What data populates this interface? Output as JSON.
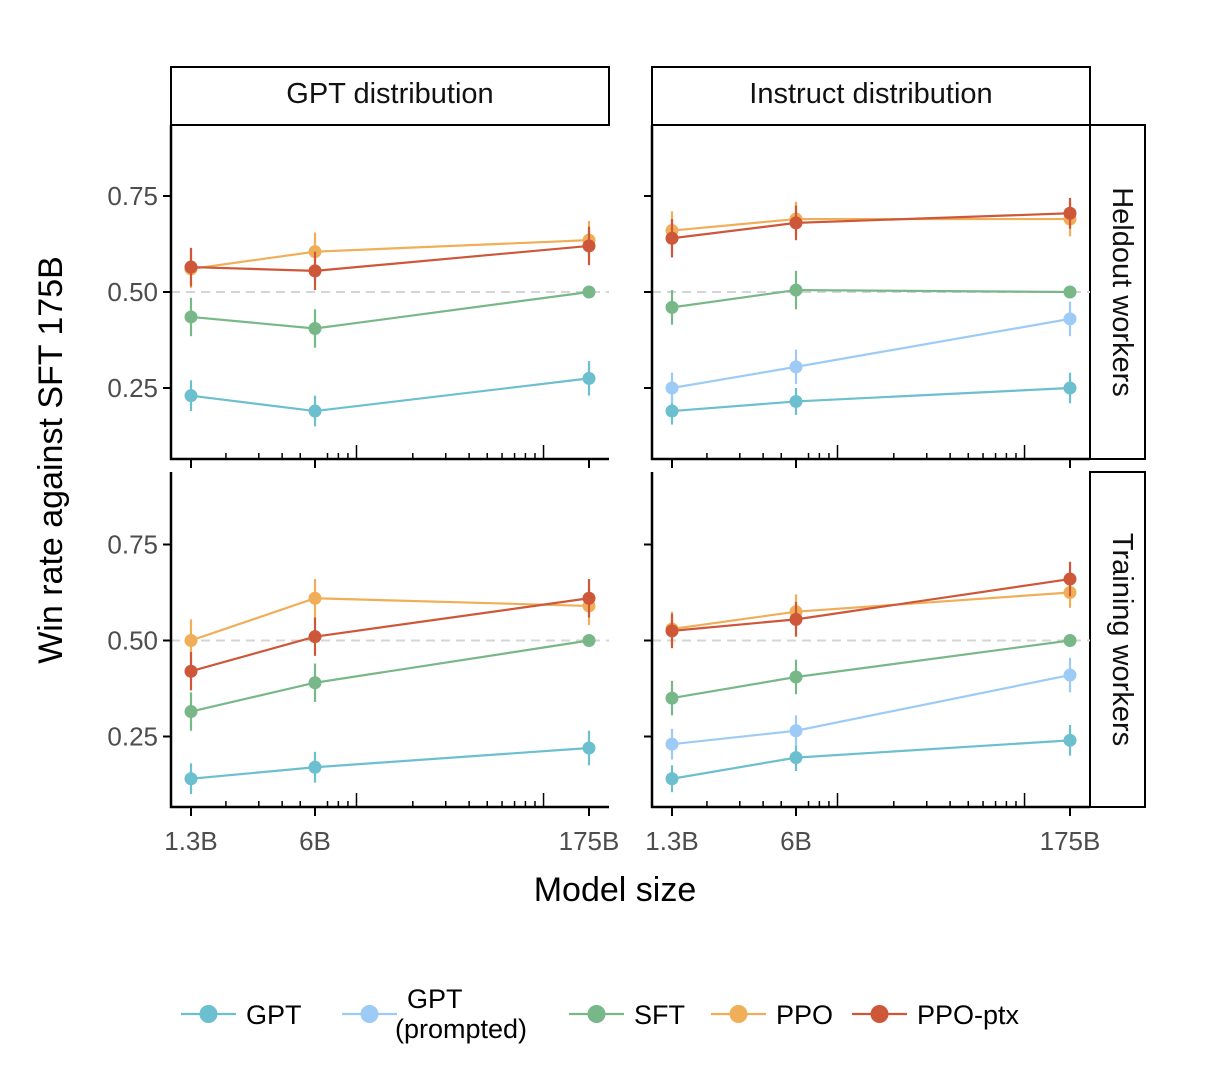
{
  "chart_data": {
    "type": "line",
    "ylabel": "Win rate against SFT 175B",
    "xlabel": "Model size",
    "x_scale": "log",
    "x_ticks": [
      {
        "value": 1.3,
        "label": "1.3B"
      },
      {
        "value": 6,
        "label": "6B"
      },
      {
        "value": 175,
        "label": "175B"
      }
    ],
    "y_ticks": [
      {
        "value": 0.25,
        "label": "0.25"
      },
      {
        "value": 0.5,
        "label": "0.50"
      },
      {
        "value": 0.75,
        "label": "0.75"
      }
    ],
    "ylim": [
      0.12,
      0.93
    ],
    "reference_line": 0.5,
    "column_strips": [
      "GPT distribution",
      "Instruct distribution"
    ],
    "row_strips": [
      "Heldout workers",
      "Training workers"
    ],
    "legend": {
      "position": "bottom",
      "entries": [
        {
          "key": "GPT",
          "label_lines": [
            "GPT"
          ],
          "color": "#6cbfcf"
        },
        {
          "key": "GPT_prompted",
          "label_lines": [
            "GPT",
            "(prompted)"
          ],
          "color": "#9dcbf6"
        },
        {
          "key": "SFT",
          "label_lines": [
            "SFT"
          ],
          "color": "#78b888"
        },
        {
          "key": "PPO",
          "label_lines": [
            "PPO"
          ],
          "color": "#f0ae58"
        },
        {
          "key": "PPO_ptx",
          "label_lines": [
            "PPO-ptx"
          ],
          "color": "#ce5739"
        }
      ]
    },
    "panels": [
      {
        "column": "GPT distribution",
        "row": "Heldout workers",
        "series": [
          {
            "key": "GPT",
            "x": [
              1.3,
              6,
              175
            ],
            "y": [
              0.23,
              0.19,
              0.275
            ],
            "err": [
              0.04,
              0.04,
              0.045
            ]
          },
          {
            "key": "SFT",
            "x": [
              1.3,
              6,
              175
            ],
            "y": [
              0.435,
              0.405,
              0.5
            ],
            "err": [
              0.05,
              0.05,
              0
            ]
          },
          {
            "key": "PPO",
            "x": [
              1.3,
              6,
              175
            ],
            "y": [
              0.56,
              0.605,
              0.635
            ],
            "err": [
              0.05,
              0.05,
              0.05
            ]
          },
          {
            "key": "PPO_ptx",
            "x": [
              1.3,
              6,
              175
            ],
            "y": [
              0.565,
              0.555,
              0.62
            ],
            "err": [
              0.05,
              0.05,
              0.05
            ]
          }
        ]
      },
      {
        "column": "Instruct distribution",
        "row": "Heldout workers",
        "series": [
          {
            "key": "GPT",
            "x": [
              1.3,
              6,
              175
            ],
            "y": [
              0.19,
              0.215,
              0.25
            ],
            "err": [
              0.035,
              0.035,
              0.04
            ]
          },
          {
            "key": "GPT_prompted",
            "x": [
              1.3,
              6,
              175
            ],
            "y": [
              0.25,
              0.305,
              0.43
            ],
            "err": [
              0.04,
              0.045,
              0.045
            ]
          },
          {
            "key": "SFT",
            "x": [
              1.3,
              6,
              175
            ],
            "y": [
              0.46,
              0.505,
              0.5
            ],
            "err": [
              0.045,
              0.05,
              0
            ]
          },
          {
            "key": "PPO",
            "x": [
              1.3,
              6,
              175
            ],
            "y": [
              0.66,
              0.69,
              0.69
            ],
            "err": [
              0.05,
              0.045,
              0.045
            ]
          },
          {
            "key": "PPO_ptx",
            "x": [
              1.3,
              6,
              175
            ],
            "y": [
              0.64,
              0.68,
              0.705
            ],
            "err": [
              0.05,
              0.045,
              0.04
            ]
          }
        ]
      },
      {
        "column": "GPT distribution",
        "row": "Training workers",
        "series": [
          {
            "key": "GPT",
            "x": [
              1.3,
              6,
              175
            ],
            "y": [
              0.14,
              0.17,
              0.22
            ],
            "err": [
              0.04,
              0.04,
              0.045
            ]
          },
          {
            "key": "SFT",
            "x": [
              1.3,
              6,
              175
            ],
            "y": [
              0.315,
              0.39,
              0.5
            ],
            "err": [
              0.05,
              0.05,
              0
            ]
          },
          {
            "key": "PPO",
            "x": [
              1.3,
              6,
              175
            ],
            "y": [
              0.5,
              0.61,
              0.59
            ],
            "err": [
              0.055,
              0.05,
              0.05
            ]
          },
          {
            "key": "PPO_ptx",
            "x": [
              1.3,
              6,
              175
            ],
            "y": [
              0.42,
              0.51,
              0.61
            ],
            "err": [
              0.05,
              0.05,
              0.05
            ]
          }
        ]
      },
      {
        "column": "Instruct distribution",
        "row": "Training workers",
        "series": [
          {
            "key": "GPT",
            "x": [
              1.3,
              6,
              175
            ],
            "y": [
              0.14,
              0.195,
              0.24
            ],
            "err": [
              0.035,
              0.035,
              0.04
            ]
          },
          {
            "key": "GPT_prompted",
            "x": [
              1.3,
              6,
              175
            ],
            "y": [
              0.23,
              0.265,
              0.41
            ],
            "err": [
              0.04,
              0.04,
              0.045
            ]
          },
          {
            "key": "SFT",
            "x": [
              1.3,
              6,
              175
            ],
            "y": [
              0.35,
              0.405,
              0.5
            ],
            "err": [
              0.045,
              0.045,
              0
            ]
          },
          {
            "key": "PPO",
            "x": [
              1.3,
              6,
              175
            ],
            "y": [
              0.53,
              0.575,
              0.625
            ],
            "err": [
              0.045,
              0.045,
              0.04
            ]
          },
          {
            "key": "PPO_ptx",
            "x": [
              1.3,
              6,
              175
            ],
            "y": [
              0.525,
              0.555,
              0.66
            ],
            "err": [
              0.045,
              0.045,
              0.045
            ]
          }
        ]
      }
    ]
  }
}
